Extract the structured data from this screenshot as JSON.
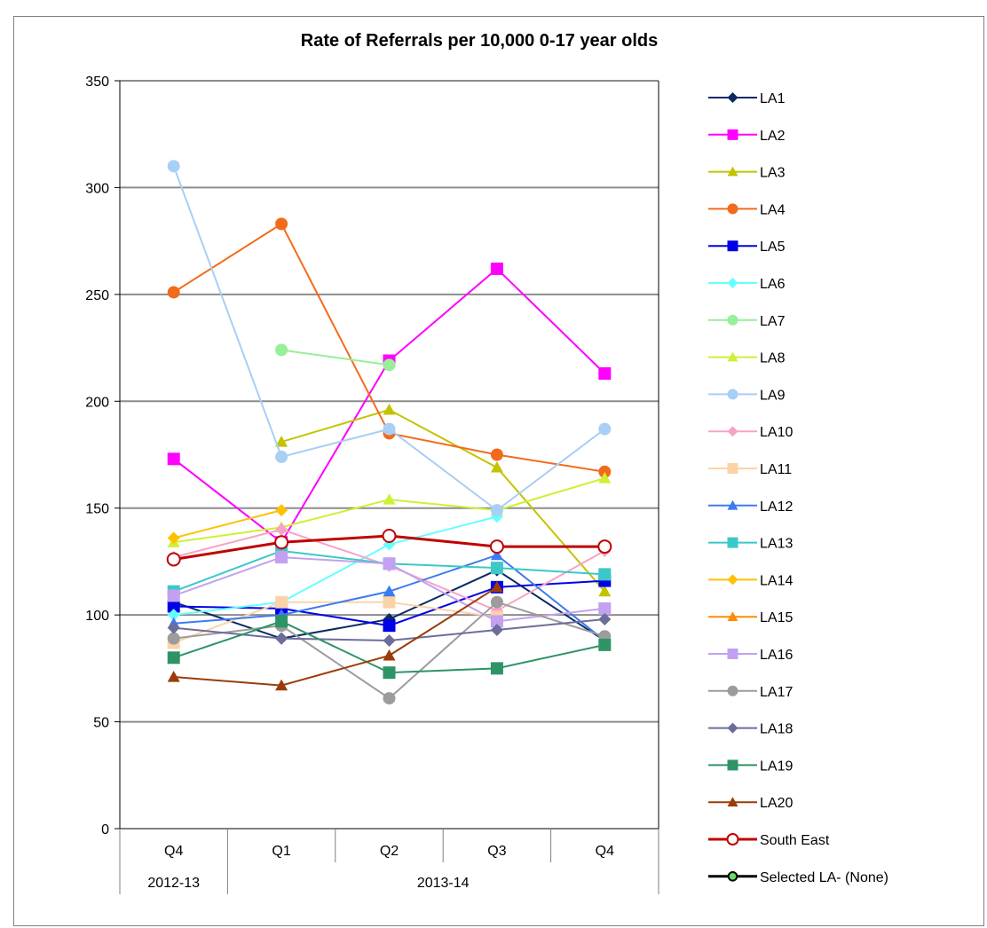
{
  "chart_data": {
    "type": "line",
    "title": "Rate of Referrals per 10,000 0-17 year olds",
    "ylim": [
      0,
      350
    ],
    "yticks": [
      0,
      50,
      100,
      150,
      200,
      250,
      300,
      350
    ],
    "categories": [
      "Q4",
      "Q1",
      "Q2",
      "Q3",
      "Q4"
    ],
    "category_groups": [
      {
        "label": "2012-13",
        "count": 1
      },
      {
        "label": "2013-14",
        "count": 4
      }
    ],
    "grid": "horizontal",
    "legend_position": "right",
    "series": [
      {
        "name": "LA1",
        "color": "#0b2a63",
        "marker": "diamond",
        "values": [
          106,
          89,
          98,
          121,
          88
        ]
      },
      {
        "name": "LA2",
        "color": "#ff00ff",
        "marker": "square",
        "values": [
          173,
          134,
          219,
          262,
          213
        ]
      },
      {
        "name": "LA3",
        "color": "#c3c300",
        "marker": "triangle",
        "values": [
          null,
          181,
          196,
          169,
          111
        ]
      },
      {
        "name": "LA4",
        "color": "#f26b1d",
        "marker": "circle",
        "values": [
          251,
          283,
          185,
          175,
          167
        ]
      },
      {
        "name": "LA5",
        "color": "#0000e6",
        "marker": "square",
        "values": [
          104,
          103,
          95,
          113,
          116
        ]
      },
      {
        "name": "LA6",
        "color": "#66ffff",
        "marker": "diamond",
        "values": [
          100,
          106,
          133,
          146,
          null
        ]
      },
      {
        "name": "LA7",
        "color": "#99ee99",
        "marker": "circle",
        "values": [
          null,
          224,
          217,
          null,
          null
        ]
      },
      {
        "name": "LA8",
        "color": "#ccf233",
        "marker": "triangle",
        "values": [
          134,
          141,
          154,
          149,
          164
        ]
      },
      {
        "name": "LA9",
        "color": "#a8cff5",
        "marker": "circle",
        "values": [
          310,
          174,
          187,
          149,
          187
        ]
      },
      {
        "name": "LA10",
        "color": "#f7a3c8",
        "marker": "diamond",
        "values": [
          127,
          140,
          123,
          102,
          130
        ]
      },
      {
        "name": "LA11",
        "color": "#fcd3a8",
        "marker": "square",
        "values": [
          87,
          106,
          106,
          99,
          null
        ]
      },
      {
        "name": "LA12",
        "color": "#3d7bf0",
        "marker": "triangle",
        "values": [
          96,
          100,
          111,
          128,
          88
        ]
      },
      {
        "name": "LA13",
        "color": "#3cc8c8",
        "marker": "square",
        "values": [
          111,
          130,
          124,
          122,
          119
        ]
      },
      {
        "name": "LA14",
        "color": "#ffc000",
        "marker": "diamond",
        "values": [
          136,
          149,
          null,
          null,
          null
        ]
      },
      {
        "name": "LA15",
        "color": "#ff8c00",
        "marker": "triangle",
        "values": [
          null,
          null,
          null,
          null,
          null
        ]
      },
      {
        "name": "LA16",
        "color": "#c3a1f0",
        "marker": "square",
        "values": [
          109,
          127,
          124,
          97,
          103
        ]
      },
      {
        "name": "LA17",
        "color": "#9c9c9c",
        "marker": "circle",
        "values": [
          89,
          95,
          61,
          106,
          90
        ]
      },
      {
        "name": "LA18",
        "color": "#6d6d9c",
        "marker": "diamond",
        "values": [
          94,
          89,
          88,
          93,
          98
        ]
      },
      {
        "name": "LA19",
        "color": "#2e9466",
        "marker": "square",
        "values": [
          80,
          97,
          73,
          75,
          86
        ]
      },
      {
        "name": "LA20",
        "color": "#9c3c0a",
        "marker": "triangle",
        "values": [
          71,
          67,
          81,
          113,
          null
        ]
      },
      {
        "name": "South East",
        "color": "#c00000",
        "marker": "circle-open",
        "width": 3,
        "values": [
          126,
          134,
          137,
          132,
          132
        ]
      },
      {
        "name": "Selected LA- (None)",
        "color": "#000000",
        "marker": "circle-green",
        "width": 3,
        "values": [
          null,
          null,
          null,
          null,
          null
        ]
      }
    ]
  }
}
